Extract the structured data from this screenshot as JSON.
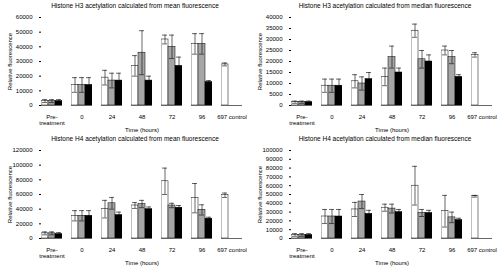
{
  "chart_data": [
    {
      "type": "bar",
      "title": "Histone H3 acetylation calculated from mean fluorescence",
      "x_label": "Time (hours)",
      "y_label": "Relative fluorescence",
      "categories": [
        "Pre-treatment",
        "0",
        "24",
        "48",
        "72",
        "96",
        "697 control"
      ],
      "ylim": [
        0,
        60000
      ],
      "yticks": [
        0,
        10000,
        20000,
        30000,
        40000,
        50000,
        60000
      ],
      "series": [
        {
          "color": "#ffffff",
          "values": [
            3000,
            14000,
            19000,
            27000,
            45000,
            42000,
            28000
          ],
          "errors": [
            1000,
            5000,
            5000,
            7000,
            3000,
            7000,
            1000
          ]
        },
        {
          "color": "#a6a6a6",
          "values": [
            3000,
            14000,
            17000,
            36000,
            40000,
            42000,
            null
          ],
          "errors": [
            1000,
            5000,
            5000,
            15000,
            8000,
            7000,
            null
          ]
        },
        {
          "color": "#000000",
          "values": [
            3000,
            14000,
            17000,
            17000,
            27000,
            16000,
            null
          ],
          "errors": [
            1000,
            5000,
            5000,
            3000,
            6000,
            1000,
            null
          ]
        }
      ]
    },
    {
      "type": "bar",
      "title": "Histone H3 acetylation calculated from median fluorescence",
      "x_label": "Time (hours)",
      "y_label": "Relative fluorescence",
      "categories": [
        "Pre-treatment",
        "0",
        "24",
        "48",
        "72",
        "96",
        "697 control"
      ],
      "ylim": [
        0,
        40000
      ],
      "yticks": [
        0,
        5000,
        10000,
        15000,
        20000,
        25000,
        30000,
        35000,
        40000
      ],
      "series": [
        {
          "color": "#ffffff",
          "values": [
            1500,
            9000,
            11000,
            13000,
            34000,
            25000,
            23000
          ],
          "errors": [
            500,
            3000,
            3000,
            4000,
            3000,
            2000,
            1000
          ]
        },
        {
          "color": "#a6a6a6",
          "values": [
            1500,
            9000,
            10000,
            22000,
            21000,
            22000,
            null
          ],
          "errors": [
            500,
            3000,
            3000,
            5000,
            4000,
            3000,
            null
          ]
        },
        {
          "color": "#000000",
          "values": [
            1500,
            9000,
            12000,
            15000,
            20000,
            13000,
            null
          ],
          "errors": [
            500,
            3000,
            3000,
            2000,
            3000,
            1000,
            null
          ]
        }
      ]
    },
    {
      "type": "bar",
      "title": "Histone H4 acetylation calculated from mean fluorescence",
      "x_label": "Time (hours)",
      "y_label": "Relative fluorescence",
      "categories": [
        "Pre-treatment",
        "0",
        "24",
        "48",
        "72",
        "96",
        "697 control"
      ],
      "ylim": [
        0,
        120000
      ],
      "yticks": [
        0,
        20000,
        40000,
        60000,
        80000,
        100000,
        120000
      ],
      "series": [
        {
          "color": "#ffffff",
          "values": [
            7000,
            31000,
            40000,
            45000,
            78000,
            55000,
            59000
          ],
          "errors": [
            2000,
            7000,
            12000,
            4000,
            18000,
            20000,
            3000
          ]
        },
        {
          "color": "#a6a6a6",
          "values": [
            7000,
            31000,
            48000,
            47000,
            45000,
            39000,
            null
          ],
          "errors": [
            2000,
            7000,
            8000,
            5000,
            3000,
            7000,
            null
          ]
        },
        {
          "color": "#000000",
          "values": [
            6000,
            31000,
            32000,
            40000,
            42000,
            27000,
            null
          ],
          "errors": [
            2000,
            7000,
            4000,
            3000,
            3000,
            2000,
            null
          ]
        }
      ]
    },
    {
      "type": "bar",
      "title": "Histone H4 acetylation calculated from median fluorescence",
      "x_label": "Time (hours)",
      "y_label": "Relative fluorescence",
      "categories": [
        "Pre-treatment",
        "0",
        "24",
        "48",
        "72",
        "96",
        "697 control"
      ],
      "ylim": [
        0,
        100000
      ],
      "yticks": [
        0,
        10000,
        20000,
        30000,
        40000,
        50000,
        60000,
        70000,
        80000,
        90000,
        100000
      ],
      "series": [
        {
          "color": "#ffffff",
          "values": [
            4000,
            25000,
            33000,
            35000,
            60000,
            31000,
            48000
          ],
          "errors": [
            1500,
            8000,
            8000,
            4000,
            22000,
            18000,
            1000
          ]
        },
        {
          "color": "#a6a6a6",
          "values": [
            4000,
            25000,
            42000,
            34000,
            29000,
            24000,
            null
          ],
          "errors": [
            1500,
            8000,
            8000,
            5000,
            4000,
            6000,
            null
          ]
        },
        {
          "color": "#000000",
          "values": [
            4000,
            25000,
            28000,
            30000,
            29000,
            21000,
            null
          ],
          "errors": [
            1500,
            8000,
            4000,
            3000,
            3000,
            2000,
            null
          ]
        }
      ]
    }
  ]
}
